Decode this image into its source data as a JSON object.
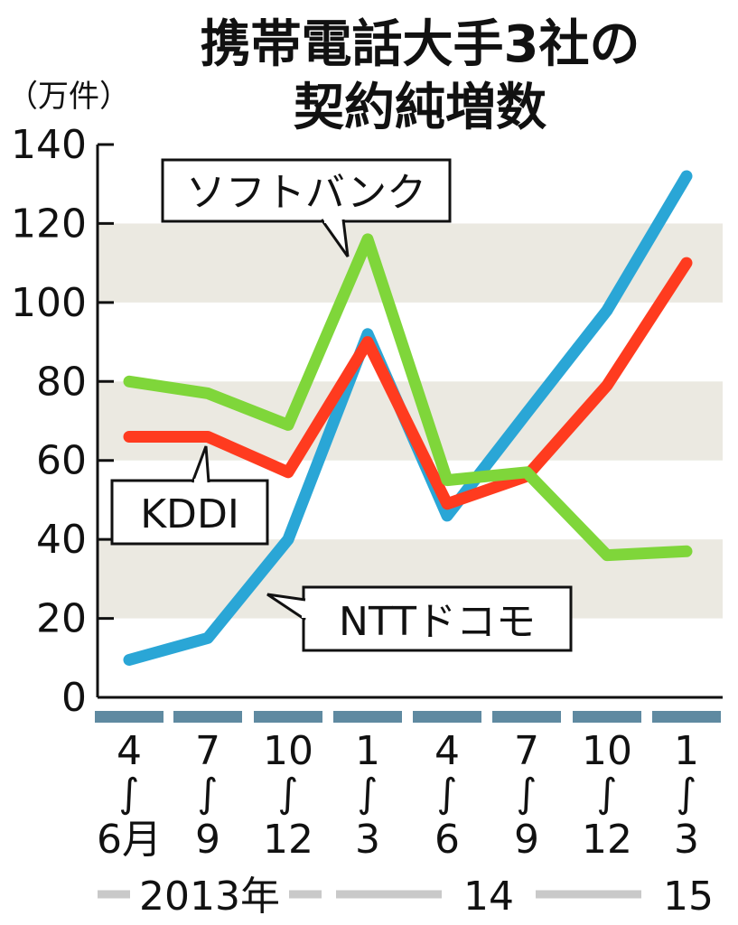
{
  "chart_data": {
    "type": "line",
    "title": [
      "携帯電話大手3社の",
      "契約純増数"
    ],
    "unit": "（万件）",
    "ylim": [
      0,
      140
    ],
    "yticks": [
      "0",
      "20",
      "40",
      "60",
      "80",
      "100",
      "120",
      "140"
    ],
    "categories": [
      {
        "top": "4",
        "sep": "∫",
        "bottom": "6月"
      },
      {
        "top": "7",
        "sep": "∫",
        "bottom": "9"
      },
      {
        "top": "10",
        "sep": "∫",
        "bottom": "12"
      },
      {
        "top": "1",
        "sep": "∫",
        "bottom": "3"
      },
      {
        "top": "4",
        "sep": "∫",
        "bottom": "6"
      },
      {
        "top": "7",
        "sep": "∫",
        "bottom": "9"
      },
      {
        "top": "10",
        "sep": "∫",
        "bottom": "12"
      },
      {
        "top": "1",
        "sep": "∫",
        "bottom": "3"
      }
    ],
    "years": [
      "2013年",
      "14",
      "15"
    ],
    "grid": "alternating horizontal bands",
    "series": [
      {
        "name": "NTTドコモ",
        "color": "#2aa6d6",
        "values": [
          9.5,
          15,
          40,
          92,
          46,
          72,
          98,
          132
        ]
      },
      {
        "name": "KDDI",
        "color": "#ff3b1f",
        "values": [
          66,
          66,
          57,
          90,
          49,
          56,
          79,
          110
        ]
      },
      {
        "name": "ソフトバンク",
        "color": "#7fd63a",
        "values": [
          80,
          77,
          69,
          116,
          55,
          57,
          36,
          37
        ]
      }
    ]
  }
}
